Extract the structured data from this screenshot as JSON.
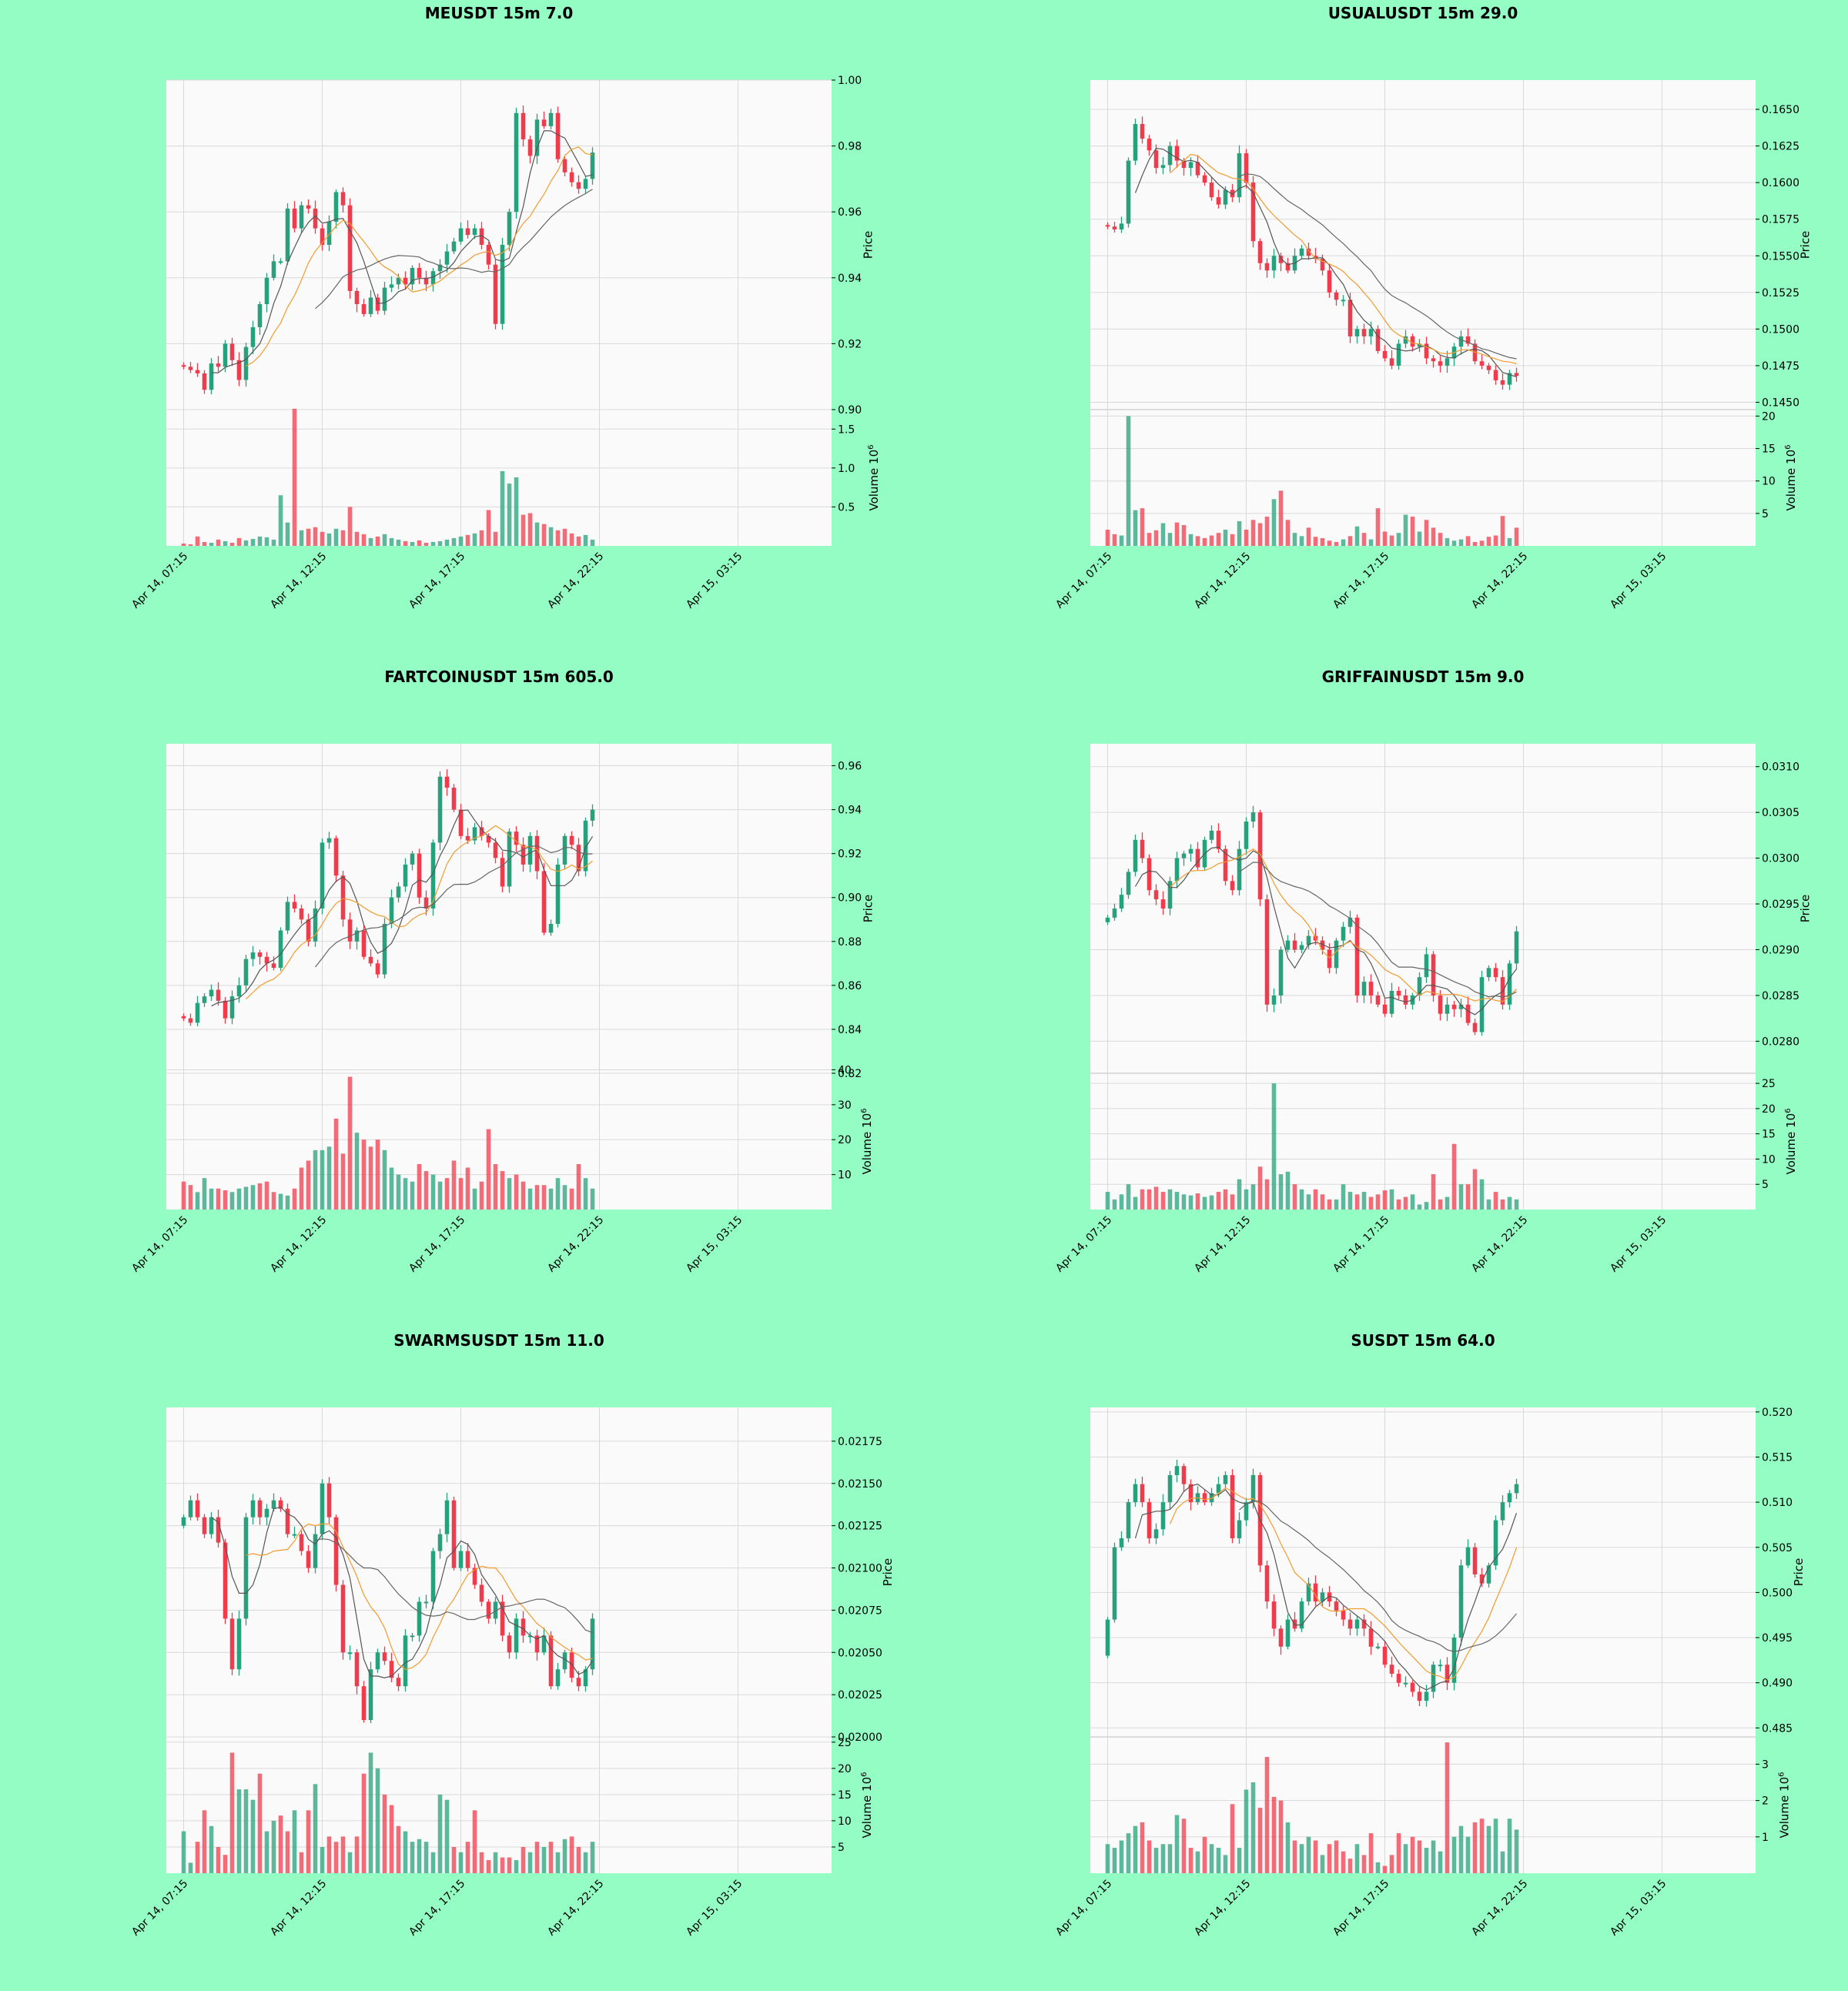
{
  "colors": {
    "background": "#93fdc3",
    "panel": "#fafafa",
    "grid": "#d9d9d9",
    "up": "#26a17b",
    "down": "#ef3b4b",
    "ma_fast": "#555555",
    "ma_mid": "#f29b2e",
    "ma_slow": "#666666"
  },
  "y_labels": {
    "price": "Price",
    "volume": "Volume",
    "volume_unit": "10",
    "volume_exp": "6"
  },
  "x_tick_labels": [
    "Apr 14, 07:15",
    "Apr 14, 12:15",
    "Apr 14, 17:15",
    "Apr 14, 22:15",
    "Apr 15, 03:15"
  ],
  "chart_data": [
    {
      "type": "candlestick",
      "title": "MEUSDT 15m 7.0",
      "price_range": [
        0.9,
        1.0
      ],
      "price_ticks": [
        "0.90",
        "0.92",
        "0.94",
        "0.96",
        "0.98",
        "1.00"
      ],
      "price_tick_values": [
        0.9,
        0.92,
        0.94,
        0.96,
        0.98,
        1.0
      ],
      "volume_range": [
        0,
        1.75
      ],
      "volume_ticks": [
        "0.5",
        "1.0",
        "1.5"
      ],
      "volume_tick_values": [
        0.5,
        1.0,
        1.5
      ],
      "closes": [
        0.913,
        0.912,
        0.911,
        0.906,
        0.914,
        0.913,
        0.92,
        0.915,
        0.909,
        0.919,
        0.925,
        0.932,
        0.94,
        0.945,
        0.945,
        0.961,
        0.955,
        0.962,
        0.961,
        0.955,
        0.95,
        0.957,
        0.966,
        0.962,
        0.936,
        0.932,
        0.929,
        0.934,
        0.93,
        0.937,
        0.938,
        0.94,
        0.938,
        0.943,
        0.94,
        0.938,
        0.942,
        0.944,
        0.948,
        0.951,
        0.955,
        0.953,
        0.955,
        0.95,
        0.944,
        0.926,
        0.95,
        0.96,
        0.99,
        0.982,
        0.977,
        0.988,
        0.986,
        0.99,
        0.976,
        0.972,
        0.969,
        0.967,
        0.97,
        0.978
      ],
      "volumes": [
        0.03,
        0.02,
        0.12,
        0.05,
        0.04,
        0.08,
        0.06,
        0.04,
        0.1,
        0.07,
        0.09,
        0.12,
        0.11,
        0.08,
        0.65,
        0.3,
        1.76,
        0.2,
        0.22,
        0.24,
        0.18,
        0.16,
        0.22,
        0.2,
        0.5,
        0.18,
        0.15,
        0.1,
        0.12,
        0.15,
        0.1,
        0.08,
        0.06,
        0.05,
        0.07,
        0.04,
        0.05,
        0.06,
        0.08,
        0.1,
        0.12,
        0.14,
        0.16,
        0.2,
        0.46,
        0.18,
        0.96,
        0.8,
        0.88,
        0.4,
        0.42,
        0.3,
        0.28,
        0.24,
        0.2,
        0.22,
        0.16,
        0.12,
        0.14,
        0.08
      ]
    },
    {
      "type": "candlestick",
      "title": "USUALUSDT 15m 29.0",
      "price_range": [
        0.1445,
        0.167
      ],
      "price_ticks": [
        "0.1450",
        "0.1475",
        "0.1500",
        "0.1525",
        "0.1550",
        "0.1575",
        "0.1600",
        "0.1625",
        "0.1650"
      ],
      "price_tick_values": [
        0.145,
        0.1475,
        0.15,
        0.1525,
        0.155,
        0.1575,
        0.16,
        0.1625,
        0.165
      ],
      "volume_range": [
        0,
        21
      ],
      "volume_ticks": [
        "5",
        "10",
        "15",
        "20"
      ],
      "volume_tick_values": [
        5,
        10,
        15,
        20
      ],
      "closes": [
        0.157,
        0.1568,
        0.1572,
        0.1615,
        0.164,
        0.163,
        0.1622,
        0.161,
        0.1612,
        0.1625,
        0.1615,
        0.161,
        0.1614,
        0.1605,
        0.16,
        0.159,
        0.1585,
        0.1595,
        0.159,
        0.162,
        0.16,
        0.156,
        0.1545,
        0.154,
        0.155,
        0.1545,
        0.154,
        0.155,
        0.1555,
        0.155,
        0.1548,
        0.154,
        0.1525,
        0.152,
        0.152,
        0.1495,
        0.15,
        0.1495,
        0.15,
        0.1485,
        0.148,
        0.1475,
        0.149,
        0.1495,
        0.1488,
        0.149,
        0.148,
        0.1478,
        0.1475,
        0.148,
        0.1488,
        0.1495,
        0.149,
        0.1478,
        0.1475,
        0.1472,
        0.1465,
        0.1462,
        0.147,
        0.1468
      ],
      "volumes": [
        2.5,
        1.8,
        1.6,
        20.0,
        5.5,
        5.8,
        2.0,
        2.4,
        3.5,
        2.0,
        3.6,
        3.2,
        1.8,
        1.5,
        1.2,
        1.6,
        2.0,
        2.5,
        1.8,
        3.8,
        2.5,
        4.0,
        3.5,
        4.5,
        7.2,
        8.5,
        4.0,
        2.0,
        1.5,
        2.8,
        1.4,
        1.2,
        0.8,
        0.6,
        1.0,
        1.5,
        3.0,
        2.0,
        1.0,
        5.8,
        2.2,
        1.6,
        2.0,
        4.8,
        4.5,
        2.2,
        4.0,
        2.8,
        2.0,
        1.2,
        0.8,
        1.0,
        1.5,
        0.6,
        0.8,
        1.4,
        1.6,
        4.6,
        1.2,
        2.8
      ]
    },
    {
      "type": "candlestick",
      "title": "FARTCOINUSDT 15m 605.0",
      "price_range": [
        0.82,
        0.97
      ],
      "price_ticks": [
        "0.82",
        "0.84",
        "0.86",
        "0.88",
        "0.90",
        "0.92",
        "0.94",
        "0.96"
      ],
      "price_tick_values": [
        0.82,
        0.84,
        0.86,
        0.88,
        0.9,
        0.92,
        0.94,
        0.96
      ],
      "volume_range": [
        0,
        39
      ],
      "volume_ticks": [
        "10",
        "20",
        "30",
        "40"
      ],
      "volume_tick_values": [
        10,
        20,
        30,
        40
      ],
      "closes": [
        0.845,
        0.843,
        0.852,
        0.855,
        0.858,
        0.853,
        0.845,
        0.855,
        0.86,
        0.872,
        0.875,
        0.873,
        0.87,
        0.868,
        0.885,
        0.898,
        0.895,
        0.89,
        0.88,
        0.895,
        0.925,
        0.927,
        0.91,
        0.89,
        0.88,
        0.885,
        0.873,
        0.87,
        0.865,
        0.888,
        0.9,
        0.905,
        0.915,
        0.92,
        0.9,
        0.895,
        0.925,
        0.955,
        0.95,
        0.94,
        0.928,
        0.926,
        0.932,
        0.928,
        0.925,
        0.918,
        0.905,
        0.93,
        0.924,
        0.915,
        0.928,
        0.912,
        0.884,
        0.888,
        0.915,
        0.928,
        0.924,
        0.912,
        0.935,
        0.94
      ],
      "volumes": [
        8.0,
        7.0,
        5.0,
        9.0,
        6.0,
        6.0,
        5.5,
        5.0,
        6.0,
        6.5,
        7.0,
        7.5,
        8.0,
        5.0,
        4.5,
        4.0,
        6.0,
        12.0,
        14.0,
        17.0,
        17.0,
        18.0,
        26.0,
        16.0,
        38.0,
        22.0,
        20.0,
        18.0,
        20.0,
        17.0,
        12.0,
        10.0,
        9.0,
        8.0,
        13.0,
        11.0,
        10.0,
        8.0,
        9.0,
        14.0,
        9.0,
        12.0,
        6.0,
        8.0,
        23.0,
        13.0,
        11.0,
        9.0,
        10.0,
        8.0,
        6.0,
        7.0,
        7.0,
        6.0,
        9.0,
        7.0,
        6.0,
        13.0,
        9.0,
        6.0
      ]
    },
    {
      "type": "candlestick",
      "title": "GRIFFAINUSDT 15m 9.0",
      "price_range": [
        0.02765,
        0.03125
      ],
      "price_ticks": [
        "0.0280",
        "0.0285",
        "0.0290",
        "0.0295",
        "0.0300",
        "0.0305",
        "0.0310"
      ],
      "price_tick_values": [
        0.028,
        0.0285,
        0.029,
        0.0295,
        0.03,
        0.0305,
        0.031
      ],
      "volume_range": [
        0,
        27
      ],
      "volume_ticks": [
        "5",
        "10",
        "15",
        "20",
        "25"
      ],
      "volume_tick_values": [
        5,
        10,
        15,
        20,
        25
      ],
      "closes": [
        0.02935,
        0.02945,
        0.0296,
        0.02985,
        0.0302,
        0.03,
        0.02965,
        0.02955,
        0.02945,
        0.02975,
        0.03,
        0.03005,
        0.0301,
        0.0299,
        0.0302,
        0.0303,
        0.0301,
        0.02975,
        0.02965,
        0.0301,
        0.0304,
        0.0305,
        0.02955,
        0.0284,
        0.0285,
        0.029,
        0.0291,
        0.029,
        0.02905,
        0.02915,
        0.0291,
        0.029,
        0.0288,
        0.0291,
        0.02925,
        0.02935,
        0.0285,
        0.02865,
        0.0285,
        0.0284,
        0.0283,
        0.02855,
        0.0285,
        0.0284,
        0.0285,
        0.0287,
        0.02895,
        0.0285,
        0.0283,
        0.0284,
        0.02835,
        0.0284,
        0.0282,
        0.0281,
        0.0287,
        0.0288,
        0.0287,
        0.0284,
        0.02885,
        0.0292
      ],
      "volumes": [
        3.5,
        2.0,
        3.0,
        5.0,
        2.5,
        4.0,
        4.0,
        4.5,
        3.5,
        4.0,
        3.5,
        3.0,
        2.8,
        3.2,
        2.5,
        2.8,
        3.5,
        4.0,
        3.0,
        6.0,
        4.0,
        5.0,
        8.5,
        6.0,
        25.0,
        7.0,
        7.5,
        5.0,
        4.0,
        3.0,
        4.0,
        3.0,
        2.0,
        2.0,
        5.0,
        3.5,
        3.0,
        3.5,
        2.5,
        3.0,
        3.8,
        4.0,
        2.0,
        2.5,
        3.0,
        1.0,
        1.5,
        7.0,
        2.0,
        2.5,
        13.0,
        5.0,
        5.0,
        8.0,
        6.0,
        2.0,
        3.5,
        2.0,
        2.5,
        2.0
      ]
    },
    {
      "type": "candlestick",
      "title": "SWARMSUSDT 15m 11.0",
      "price_range": [
        0.02,
        0.02195
      ],
      "price_ticks": [
        "0.02000",
        "0.02025",
        "0.02050",
        "0.02075",
        "0.02100",
        "0.02125",
        "0.02150",
        "0.02175"
      ],
      "price_tick_values": [
        0.02,
        0.02025,
        0.0205,
        0.02075,
        0.021,
        0.02125,
        0.0215,
        0.02175
      ],
      "volume_range": [
        0,
        26
      ],
      "volume_ticks": [
        "5",
        "10",
        "15",
        "20",
        "25"
      ],
      "volume_tick_values": [
        5,
        10,
        15,
        20,
        25
      ],
      "closes": [
        0.0213,
        0.0214,
        0.0213,
        0.0212,
        0.0213,
        0.02115,
        0.0207,
        0.0204,
        0.0207,
        0.0213,
        0.0214,
        0.0213,
        0.02135,
        0.0214,
        0.02135,
        0.0212,
        0.0212,
        0.0211,
        0.021,
        0.0212,
        0.0215,
        0.0213,
        0.0209,
        0.0205,
        0.0205,
        0.0203,
        0.0201,
        0.0204,
        0.0205,
        0.02045,
        0.02035,
        0.0203,
        0.0206,
        0.0206,
        0.0208,
        0.0208,
        0.0211,
        0.0212,
        0.0214,
        0.021,
        0.0211,
        0.021,
        0.0209,
        0.0208,
        0.0207,
        0.0208,
        0.0206,
        0.0205,
        0.0207,
        0.0206,
        0.0206,
        0.0205,
        0.0206,
        0.0203,
        0.0204,
        0.0205,
        0.02035,
        0.0203,
        0.0204,
        0.0207
      ],
      "volumes": [
        8.0,
        2.0,
        6.0,
        12.0,
        9.0,
        5.0,
        3.5,
        23.0,
        16.0,
        16.0,
        14.0,
        19.0,
        8.0,
        10.0,
        11.0,
        8.0,
        12.0,
        4.0,
        12.0,
        17.0,
        5.0,
        7.0,
        6.0,
        7.0,
        4.0,
        7.0,
        19.0,
        23.0,
        20.0,
        15.0,
        13.0,
        9.0,
        8.0,
        6.0,
        6.5,
        6.0,
        4.0,
        15.0,
        14.0,
        5.0,
        4.0,
        6.0,
        12.0,
        4.0,
        2.5,
        4.0,
        3.0,
        3.0,
        2.5,
        5.0,
        4.0,
        6.0,
        5.0,
        6.0,
        4.0,
        6.5,
        7.0,
        5.0,
        4.0,
        6.0
      ]
    },
    {
      "type": "candlestick",
      "title": "SUSDT 15m 64.0",
      "price_range": [
        0.484,
        0.5205
      ],
      "price_ticks": [
        "0.485",
        "0.490",
        "0.495",
        "0.500",
        "0.505",
        "0.510",
        "0.515",
        "0.520"
      ],
      "price_tick_values": [
        0.485,
        0.49,
        0.495,
        0.5,
        0.505,
        0.51,
        0.515,
        0.52
      ],
      "volume_range": [
        0,
        3.75
      ],
      "volume_ticks": [
        "1",
        "2",
        "3"
      ],
      "volume_tick_values": [
        1,
        2,
        3
      ],
      "closes": [
        0.497,
        0.505,
        0.506,
        0.51,
        0.512,
        0.51,
        0.506,
        0.507,
        0.51,
        0.513,
        0.514,
        0.512,
        0.51,
        0.511,
        0.51,
        0.511,
        0.512,
        0.513,
        0.506,
        0.508,
        0.51,
        0.513,
        0.503,
        0.499,
        0.496,
        0.494,
        0.497,
        0.496,
        0.499,
        0.501,
        0.499,
        0.5,
        0.499,
        0.498,
        0.497,
        0.496,
        0.497,
        0.496,
        0.494,
        0.494,
        0.492,
        0.491,
        0.49,
        0.49,
        0.489,
        0.488,
        0.489,
        0.492,
        0.492,
        0.49,
        0.495,
        0.503,
        0.505,
        0.502,
        0.501,
        0.503,
        0.508,
        0.51,
        0.511,
        0.512
      ],
      "volumes": [
        0.8,
        0.7,
        0.9,
        1.1,
        1.3,
        1.4,
        0.9,
        0.7,
        0.8,
        0.8,
        1.6,
        1.5,
        0.7,
        0.6,
        1.0,
        0.8,
        0.7,
        0.5,
        1.9,
        0.7,
        2.3,
        2.5,
        1.8,
        3.2,
        2.1,
        2.0,
        1.4,
        0.9,
        0.8,
        1.0,
        0.9,
        0.5,
        0.8,
        0.9,
        0.6,
        0.4,
        0.8,
        0.5,
        1.1,
        0.3,
        0.2,
        0.5,
        1.1,
        0.8,
        1.0,
        0.9,
        0.7,
        0.9,
        0.6,
        3.6,
        1.0,
        1.3,
        1.0,
        1.4,
        1.5,
        1.3,
        1.5,
        0.6,
        1.5,
        1.2
      ]
    }
  ]
}
